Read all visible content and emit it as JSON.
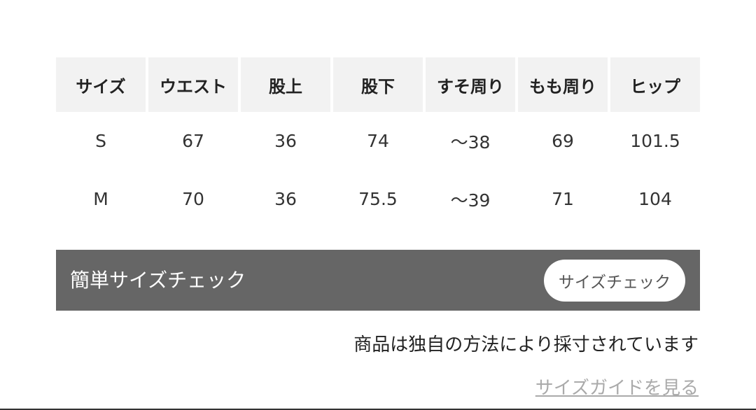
{
  "table": {
    "header": [
      "サイズ",
      "ウエスト",
      "股上",
      "股下",
      "すそ周り",
      "もも周り",
      "ヒップ"
    ],
    "rows": [
      [
        "S",
        "67",
        "36",
        "74",
        "〜38",
        "69",
        "101.5"
      ],
      [
        "M",
        "70",
        "36",
        "75.5",
        "〜39",
        "71",
        "104"
      ]
    ]
  },
  "size_check": {
    "label": "簡単サイズチェック",
    "button": "サイズチェック"
  },
  "note": "商品は独自の方法により採寸されています",
  "guide_link": "サイズガイドを見る"
}
